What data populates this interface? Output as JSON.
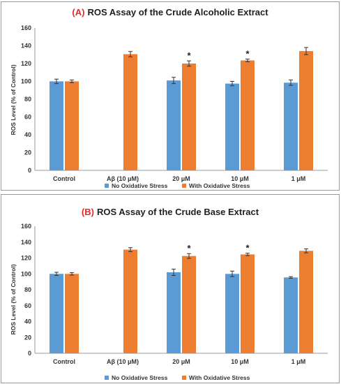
{
  "chart_data": [
    {
      "type": "bar",
      "title_prefix": "(A)",
      "title": "ROS Assay of the Crude Alcoholic Extract",
      "ylabel": "ROS Level (% of Control)",
      "xlabel": "",
      "ylim": [
        0,
        160
      ],
      "yticks": [
        0,
        20,
        40,
        60,
        80,
        100,
        120,
        140,
        160
      ],
      "categories": [
        "Control",
        "Aβ (10 μM)",
        "20 μM",
        "10 μM",
        "1 μM"
      ],
      "series": [
        {
          "name": "No Oxidative Stress",
          "color": "#5b9bd5",
          "values": [
            100,
            null,
            101,
            97.5,
            98.5
          ],
          "errors": [
            2.5,
            null,
            3.5,
            2.5,
            3
          ]
        },
        {
          "name": "With Oxidative Stress",
          "color": "#ed7d31",
          "values": [
            100,
            130.5,
            120,
            123.5,
            134
          ],
          "errors": [
            1.5,
            3,
            3,
            1.5,
            4
          ]
        }
      ],
      "significance": [
        "",
        "",
        "*",
        "*",
        ""
      ],
      "legend": "bottom",
      "grid": false
    },
    {
      "type": "bar",
      "title_prefix": "(B)",
      "title": "ROS Assay of the Crude Base Extract",
      "ylabel": "ROS Level (% of Control)",
      "xlabel": "",
      "ylim": [
        0,
        160
      ],
      "yticks": [
        0,
        20,
        40,
        60,
        80,
        100,
        120,
        140,
        160
      ],
      "categories": [
        "Control",
        "Aβ (10 μM)",
        "20 μM",
        "10 μM",
        "1 μM"
      ],
      "series": [
        {
          "name": "No Oxidative Stress",
          "color": "#5b9bd5",
          "values": [
            100,
            null,
            102,
            100,
            95.5
          ],
          "errors": [
            2,
            null,
            4,
            3.5,
            1
          ]
        },
        {
          "name": "With Oxidative Stress",
          "color": "#ed7d31",
          "values": [
            100,
            130.5,
            122.5,
            124.5,
            129
          ],
          "errors": [
            1.5,
            2.5,
            3,
            1.5,
            2.5
          ]
        }
      ],
      "significance": [
        "",
        "",
        "*",
        "*",
        ""
      ],
      "legend": "bottom",
      "grid": false
    }
  ]
}
